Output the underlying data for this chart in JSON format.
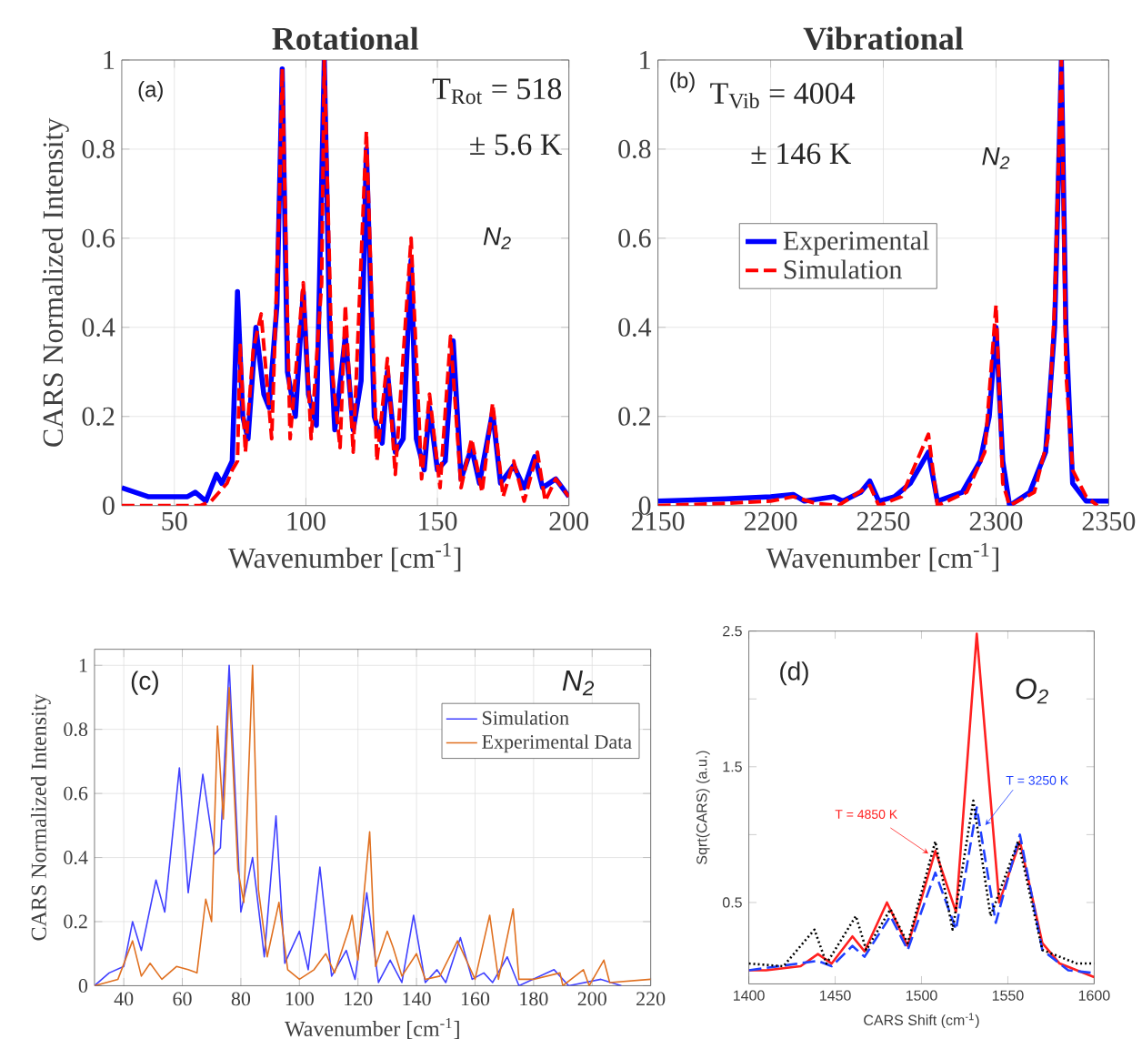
{
  "chart_data": [
    {
      "type": "line",
      "title": "Rotational",
      "xlabel": "Wavenumber [cm$^{-1}$]",
      "ylabel": "CARS Normalized Intensity",
      "xlim": [
        30,
        200
      ],
      "ylim": [
        0,
        1
      ],
      "xticks": [
        50,
        100,
        150,
        200
      ],
      "yticks": [
        0,
        0.2,
        0.4,
        0.6,
        0.8,
        1
      ],
      "grid": true,
      "legend": false,
      "annotations": [
        "(a)",
        "T$_{Rot}$  =  518",
        "± 5.6  K",
        "N$_{2}$"
      ],
      "series": [
        {
          "color": "#0000ff",
          "line_style": "solid",
          "x": [
            30,
            40,
            50,
            55,
            58,
            62,
            66,
            68,
            72,
            74,
            76,
            78,
            81,
            84,
            86,
            89,
            91,
            93,
            96,
            99,
            101,
            104,
            107,
            109,
            111,
            115,
            118,
            121,
            123,
            126,
            129,
            131,
            134,
            137,
            140,
            142,
            145,
            147,
            150,
            153,
            156,
            159,
            163,
            166,
            171,
            174,
            179,
            183,
            187,
            190,
            195,
            200
          ],
          "values": [
            0.04,
            0.02,
            0.02,
            0.02,
            0.03,
            0.01,
            0.07,
            0.05,
            0.1,
            0.48,
            0.2,
            0.15,
            0.4,
            0.25,
            0.22,
            0.45,
            0.98,
            0.3,
            0.2,
            0.48,
            0.25,
            0.18,
            1.0,
            0.4,
            0.17,
            0.38,
            0.17,
            0.28,
            0.8,
            0.2,
            0.14,
            0.3,
            0.12,
            0.15,
            0.55,
            0.15,
            0.08,
            0.22,
            0.08,
            0.1,
            0.37,
            0.06,
            0.13,
            0.05,
            0.21,
            0.05,
            0.09,
            0.04,
            0.11,
            0.04,
            0.06,
            0.02
          ]
        },
        {
          "color": "#ff0000",
          "line_style": "dashed",
          "x": [
            30,
            45,
            60,
            64,
            70,
            72,
            74,
            75,
            77,
            80,
            83,
            87,
            90,
            91,
            94,
            99,
            102,
            106,
            107,
            110,
            113,
            115,
            118,
            123,
            127,
            131,
            134,
            140,
            144,
            147,
            151,
            155,
            159,
            163,
            167,
            171,
            175,
            179,
            183,
            188,
            191,
            195,
            200
          ],
          "values": [
            0,
            0,
            0,
            0.01,
            0.05,
            0.08,
            0.1,
            0.36,
            0.12,
            0.35,
            0.43,
            0.15,
            0.7,
            0.98,
            0.15,
            0.5,
            0.15,
            0.5,
            1.0,
            0.3,
            0.13,
            0.45,
            0.12,
            0.84,
            0.1,
            0.33,
            0.07,
            0.6,
            0.06,
            0.25,
            0.04,
            0.38,
            0.04,
            0.15,
            0.03,
            0.23,
            0.02,
            0.1,
            0.01,
            0.12,
            0.01,
            0.06,
            0.02
          ]
        }
      ]
    },
    {
      "type": "line",
      "title": "Vibrational",
      "xlabel": "Wavenumber [cm$^{-1}$]",
      "xlim": [
        2150,
        2350
      ],
      "ylim": [
        0,
        1
      ],
      "xticks": [
        2150,
        2200,
        2250,
        2300,
        2350
      ],
      "yticks": [
        0,
        0.2,
        0.4,
        0.6,
        0.8,
        1
      ],
      "grid": true,
      "legend": "left",
      "annotations": [
        "(b)",
        "T$_{Vib}$  =  4004",
        "± 146  K",
        "N$_{2}$"
      ],
      "series": [
        {
          "name": "Experimental",
          "color": "#0000ff",
          "line_style": "solid",
          "x": [
            2150,
            2180,
            2200,
            2210,
            2215,
            2228,
            2232,
            2240,
            2244,
            2248,
            2255,
            2262,
            2270,
            2274,
            2285,
            2293,
            2297,
            2300,
            2303,
            2306,
            2315,
            2322,
            2326,
            2329,
            2331,
            2334,
            2340,
            2350
          ],
          "values": [
            0.01,
            0.015,
            0.02,
            0.025,
            0.01,
            0.02,
            0.01,
            0.03,
            0.055,
            0.01,
            0.02,
            0.05,
            0.12,
            0.01,
            0.03,
            0.1,
            0.2,
            0.4,
            0.1,
            0.0,
            0.03,
            0.12,
            0.4,
            1.0,
            0.4,
            0.05,
            0.01,
            0.01
          ]
        },
        {
          "name": "Simulation",
          "color": "#ff0000",
          "line_style": "dashed",
          "x": [
            2150,
            2180,
            2200,
            2210,
            2220,
            2230,
            2244,
            2248,
            2258,
            2270,
            2274,
            2287,
            2295,
            2300,
            2303,
            2306,
            2317,
            2323,
            2326,
            2329,
            2331,
            2334,
            2340,
            2345
          ],
          "values": [
            0.0,
            0.005,
            0.01,
            0.02,
            0.005,
            0.0,
            0.045,
            0.0,
            0.02,
            0.16,
            0.0,
            0.03,
            0.12,
            0.45,
            0.05,
            0.0,
            0.03,
            0.15,
            0.45,
            1.0,
            0.3,
            0.08,
            0.02,
            0.0
          ]
        }
      ]
    },
    {
      "type": "line",
      "xlabel": "Wavenumber [cm$^{-1}$]",
      "ylabel": "CARS Normalized Intensity",
      "xlim": [
        30,
        220
      ],
      "ylim": [
        0,
        1.05
      ],
      "xticks": [
        40,
        60,
        80,
        100,
        120,
        140,
        160,
        180,
        200,
        220
      ],
      "yticks": [
        0,
        0.2,
        0.4,
        0.6,
        0.8,
        1
      ],
      "grid": true,
      "legend": "top right",
      "annotations": [
        "(c)",
        "N$_{2}$"
      ],
      "series": [
        {
          "name": "Simulation",
          "color": "#4040ff",
          "line_style": "solid",
          "x": [
            30,
            35,
            40,
            43,
            46,
            51,
            54,
            59,
            62,
            67,
            71,
            73,
            76,
            80,
            84,
            88,
            92,
            95,
            100,
            103,
            107,
            111,
            116,
            119,
            123,
            127,
            131,
            135,
            139,
            143,
            147,
            150,
            155,
            159,
            163,
            166,
            171,
            175,
            187,
            192,
            203,
            210
          ],
          "values": [
            0,
            0.04,
            0.06,
            0.2,
            0.11,
            0.33,
            0.23,
            0.68,
            0.29,
            0.66,
            0.41,
            0.43,
            1.0,
            0.23,
            0.4,
            0.09,
            0.53,
            0.07,
            0.17,
            0.05,
            0.37,
            0.03,
            0.11,
            0.02,
            0.29,
            0.01,
            0.08,
            0.01,
            0.22,
            0.01,
            0.05,
            0.01,
            0.15,
            0.02,
            0.04,
            0.01,
            0.09,
            0.0,
            0.05,
            0.0,
            0.02,
            0.0
          ]
        },
        {
          "name": "Experimental Data",
          "color": "#e07020",
          "line_style": "solid",
          "x": [
            30,
            38,
            43,
            46,
            49,
            53,
            58,
            62,
            65,
            68,
            70,
            72,
            74,
            76,
            79,
            81,
            84,
            86,
            89,
            93,
            96,
            100,
            105,
            109,
            112,
            117,
            118,
            120,
            124,
            126,
            130,
            132,
            135,
            140,
            143,
            148,
            154,
            157,
            160,
            165,
            168,
            173,
            175,
            180,
            189,
            190,
            197,
            199,
            204,
            206,
            220
          ],
          "values": [
            0.0,
            0.02,
            0.14,
            0.03,
            0.07,
            0.02,
            0.06,
            0.05,
            0.04,
            0.27,
            0.2,
            0.81,
            0.52,
            0.93,
            0.36,
            0.26,
            1.0,
            0.3,
            0.09,
            0.26,
            0.05,
            0.02,
            0.05,
            0.1,
            0.04,
            0.18,
            0.22,
            0.08,
            0.48,
            0.06,
            0.17,
            0.12,
            0.03,
            0.1,
            0.02,
            0.03,
            0.14,
            0.08,
            0.02,
            0.22,
            0.02,
            0.24,
            0.02,
            0.02,
            0.04,
            0.0,
            0.05,
            0.0,
            0.08,
            0.01,
            0.02
          ]
        }
      ]
    },
    {
      "type": "line",
      "xlabel": "CARS Shift (cm$^{-1}$)",
      "ylabel": "Sqrt(CARS) (a.u.)",
      "xlim": [
        1400,
        1600
      ],
      "ylim": [
        -0.1,
        2.5
      ],
      "xticks": [
        1400,
        1450,
        1500,
        1550,
        1600
      ],
      "yticks": [
        0.5,
        {
          "value": 1,
          "label": null
        },
        1.5,
        {
          "value": 2,
          "label": null
        },
        2.5
      ],
      "legend": false,
      "annotations": [
        "(d)",
        "O$_{2}$"
      ],
      "series": [
        {
          "name": "T = 4850 K",
          "color": "#ff2020",
          "line_style": "solid",
          "x": [
            1400,
            1410,
            1430,
            1440,
            1448,
            1460,
            1467,
            1480,
            1492,
            1508,
            1520,
            1532,
            1545,
            1557,
            1570,
            1580,
            1600
          ],
          "values": [
            0.0,
            0.0,
            0.03,
            0.12,
            0.05,
            0.25,
            0.14,
            0.5,
            0.18,
            0.88,
            0.43,
            2.48,
            0.5,
            0.95,
            0.2,
            0.05,
            -0.05
          ]
        },
        {
          "name": "T = 3250 K",
          "color": "#2040ff",
          "line_style": "dashed",
          "x": [
            1400,
            1440,
            1448,
            1460,
            1467,
            1482,
            1492,
            1508,
            1520,
            1532,
            1543,
            1557,
            1570,
            1585,
            1600
          ],
          "values": [
            0.0,
            0.07,
            0.03,
            0.18,
            0.1,
            0.4,
            0.15,
            0.72,
            0.3,
            1.2,
            0.35,
            1.0,
            0.15,
            0.0,
            -0.02
          ]
        },
        {
          "color": "#000000",
          "line_style": "dotted",
          "x": [
            1400,
            1420,
            1438,
            1445,
            1462,
            1468,
            1482,
            1492,
            1508,
            1518,
            1530,
            1540,
            1556,
            1570,
            1590,
            1600
          ],
          "values": [
            0.05,
            0.03,
            0.3,
            0.05,
            0.4,
            0.15,
            0.45,
            0.2,
            0.95,
            0.3,
            1.25,
            0.4,
            0.95,
            0.15,
            0.05,
            0.05
          ]
        }
      ]
    }
  ]
}
